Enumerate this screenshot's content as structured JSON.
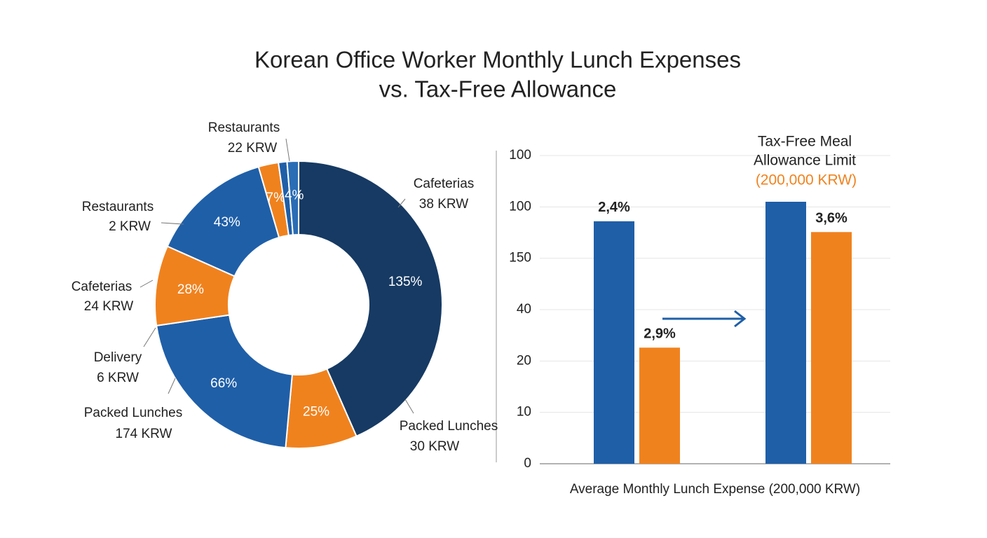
{
  "title": [
    "Korean Office Worker Monthly Lunch Expenses",
    "vs. Tax-Free Allowance"
  ],
  "chart_data": [
    {
      "type": "pie",
      "values": [
        135,
        25,
        66,
        28,
        43,
        7,
        3,
        4
      ],
      "value_labels": [
        "135%",
        "25%",
        "66%",
        "28%",
        "43%",
        "7%",
        null,
        "4%"
      ],
      "colors": [
        "#163a63",
        "#f0821e",
        "#1f5fa8",
        "#f0821e",
        "#1f5fa8",
        "#f0821e",
        "#1f5fa8",
        "#2a6db5"
      ],
      "callouts": [
        {
          "name": "Restaurants",
          "amount": "22 KRW"
        },
        {
          "name": "Cafeterias",
          "amount": "38 KRW"
        },
        {
          "name": "Restaurants",
          "amount": "2 KRW"
        },
        {
          "name": "Cafeterias",
          "amount": "24 KRW"
        },
        {
          "name": "Delivery",
          "amount": "6 KRW"
        },
        {
          "name": "Packed Lunches",
          "amount": "174 KRW"
        },
        {
          "name": "Packed Lunches",
          "amount": "30 KRW"
        }
      ]
    },
    {
      "type": "bar",
      "categories": [
        null,
        null
      ],
      "series": [
        {
          "color": "#1f5fa8",
          "values": [
            4.72,
            5.1
          ]
        },
        {
          "color": "#f0821e",
          "values": [
            2.26,
            4.51
          ]
        }
      ],
      "ylim": [
        0,
        6
      ],
      "yticks": [
        0,
        {
          "value": 1,
          "label": "10"
        },
        {
          "value": 2,
          "label": "20"
        },
        {
          "value": 3,
          "label": "40"
        },
        {
          "value": 4,
          "label": "150"
        },
        {
          "value": 5,
          "label": "100"
        },
        {
          "value": 6,
          "label": "100"
        }
      ],
      "grid": true,
      "xlabel": "Average Monthly Lunch Expense (200,000 KRW)",
      "annotations": [
        "2,4%",
        "2,9%",
        "3,6%"
      ],
      "limit_label": [
        "Tax-Free Meal",
        "Allowance Limit"
      ],
      "limit_amount": "(200,000 KRW)"
    }
  ]
}
